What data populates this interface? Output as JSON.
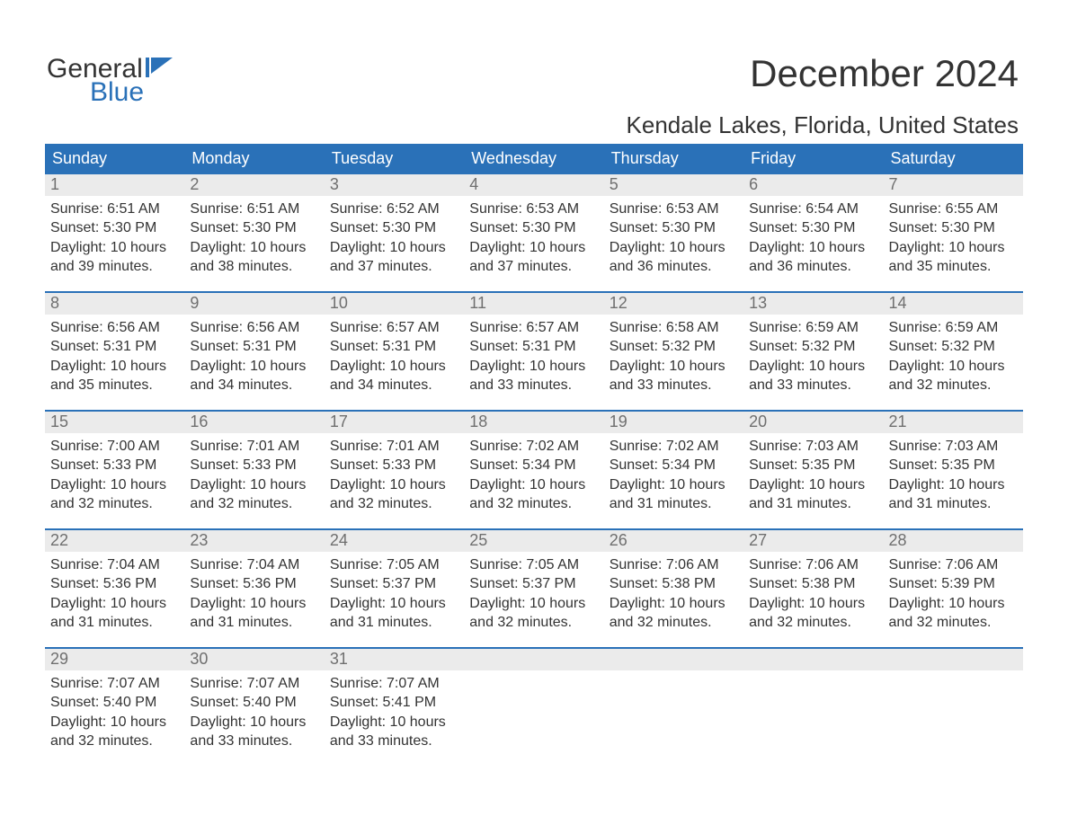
{
  "logo": {
    "word1": "General",
    "word2": "Blue",
    "flag_color": "#2a71b8"
  },
  "title": {
    "month_year": "December 2024",
    "location": "Kendale Lakes, Florida, United States"
  },
  "colors": {
    "header_bg": "#2a71b8",
    "header_text": "#ffffff",
    "daynum_bg": "#ebebeb",
    "daynum_text": "#6f6f6f",
    "body_text": "#333333",
    "week_border": "#2a71b8",
    "background": "#ffffff"
  },
  "typography": {
    "month_year_fontsize": 42,
    "location_fontsize": 26,
    "header_fontsize": 18,
    "daynum_fontsize": 18,
    "cell_fontsize": 16,
    "logo_fontsize": 30
  },
  "calendar": {
    "day_headers": [
      "Sunday",
      "Monday",
      "Tuesday",
      "Wednesday",
      "Thursday",
      "Friday",
      "Saturday"
    ],
    "weeks": [
      [
        {
          "n": "1",
          "sunrise": "Sunrise: 6:51 AM",
          "sunset": "Sunset: 5:30 PM",
          "daylight": "Daylight: 10 hours and 39 minutes."
        },
        {
          "n": "2",
          "sunrise": "Sunrise: 6:51 AM",
          "sunset": "Sunset: 5:30 PM",
          "daylight": "Daylight: 10 hours and 38 minutes."
        },
        {
          "n": "3",
          "sunrise": "Sunrise: 6:52 AM",
          "sunset": "Sunset: 5:30 PM",
          "daylight": "Daylight: 10 hours and 37 minutes."
        },
        {
          "n": "4",
          "sunrise": "Sunrise: 6:53 AM",
          "sunset": "Sunset: 5:30 PM",
          "daylight": "Daylight: 10 hours and 37 minutes."
        },
        {
          "n": "5",
          "sunrise": "Sunrise: 6:53 AM",
          "sunset": "Sunset: 5:30 PM",
          "daylight": "Daylight: 10 hours and 36 minutes."
        },
        {
          "n": "6",
          "sunrise": "Sunrise: 6:54 AM",
          "sunset": "Sunset: 5:30 PM",
          "daylight": "Daylight: 10 hours and 36 minutes."
        },
        {
          "n": "7",
          "sunrise": "Sunrise: 6:55 AM",
          "sunset": "Sunset: 5:30 PM",
          "daylight": "Daylight: 10 hours and 35 minutes."
        }
      ],
      [
        {
          "n": "8",
          "sunrise": "Sunrise: 6:56 AM",
          "sunset": "Sunset: 5:31 PM",
          "daylight": "Daylight: 10 hours and 35 minutes."
        },
        {
          "n": "9",
          "sunrise": "Sunrise: 6:56 AM",
          "sunset": "Sunset: 5:31 PM",
          "daylight": "Daylight: 10 hours and 34 minutes."
        },
        {
          "n": "10",
          "sunrise": "Sunrise: 6:57 AM",
          "sunset": "Sunset: 5:31 PM",
          "daylight": "Daylight: 10 hours and 34 minutes."
        },
        {
          "n": "11",
          "sunrise": "Sunrise: 6:57 AM",
          "sunset": "Sunset: 5:31 PM",
          "daylight": "Daylight: 10 hours and 33 minutes."
        },
        {
          "n": "12",
          "sunrise": "Sunrise: 6:58 AM",
          "sunset": "Sunset: 5:32 PM",
          "daylight": "Daylight: 10 hours and 33 minutes."
        },
        {
          "n": "13",
          "sunrise": "Sunrise: 6:59 AM",
          "sunset": "Sunset: 5:32 PM",
          "daylight": "Daylight: 10 hours and 33 minutes."
        },
        {
          "n": "14",
          "sunrise": "Sunrise: 6:59 AM",
          "sunset": "Sunset: 5:32 PM",
          "daylight": "Daylight: 10 hours and 32 minutes."
        }
      ],
      [
        {
          "n": "15",
          "sunrise": "Sunrise: 7:00 AM",
          "sunset": "Sunset: 5:33 PM",
          "daylight": "Daylight: 10 hours and 32 minutes."
        },
        {
          "n": "16",
          "sunrise": "Sunrise: 7:01 AM",
          "sunset": "Sunset: 5:33 PM",
          "daylight": "Daylight: 10 hours and 32 minutes."
        },
        {
          "n": "17",
          "sunrise": "Sunrise: 7:01 AM",
          "sunset": "Sunset: 5:33 PM",
          "daylight": "Daylight: 10 hours and 32 minutes."
        },
        {
          "n": "18",
          "sunrise": "Sunrise: 7:02 AM",
          "sunset": "Sunset: 5:34 PM",
          "daylight": "Daylight: 10 hours and 32 minutes."
        },
        {
          "n": "19",
          "sunrise": "Sunrise: 7:02 AM",
          "sunset": "Sunset: 5:34 PM",
          "daylight": "Daylight: 10 hours and 31 minutes."
        },
        {
          "n": "20",
          "sunrise": "Sunrise: 7:03 AM",
          "sunset": "Sunset: 5:35 PM",
          "daylight": "Daylight: 10 hours and 31 minutes."
        },
        {
          "n": "21",
          "sunrise": "Sunrise: 7:03 AM",
          "sunset": "Sunset: 5:35 PM",
          "daylight": "Daylight: 10 hours and 31 minutes."
        }
      ],
      [
        {
          "n": "22",
          "sunrise": "Sunrise: 7:04 AM",
          "sunset": "Sunset: 5:36 PM",
          "daylight": "Daylight: 10 hours and 31 minutes."
        },
        {
          "n": "23",
          "sunrise": "Sunrise: 7:04 AM",
          "sunset": "Sunset: 5:36 PM",
          "daylight": "Daylight: 10 hours and 31 minutes."
        },
        {
          "n": "24",
          "sunrise": "Sunrise: 7:05 AM",
          "sunset": "Sunset: 5:37 PM",
          "daylight": "Daylight: 10 hours and 31 minutes."
        },
        {
          "n": "25",
          "sunrise": "Sunrise: 7:05 AM",
          "sunset": "Sunset: 5:37 PM",
          "daylight": "Daylight: 10 hours and 32 minutes."
        },
        {
          "n": "26",
          "sunrise": "Sunrise: 7:06 AM",
          "sunset": "Sunset: 5:38 PM",
          "daylight": "Daylight: 10 hours and 32 minutes."
        },
        {
          "n": "27",
          "sunrise": "Sunrise: 7:06 AM",
          "sunset": "Sunset: 5:38 PM",
          "daylight": "Daylight: 10 hours and 32 minutes."
        },
        {
          "n": "28",
          "sunrise": "Sunrise: 7:06 AM",
          "sunset": "Sunset: 5:39 PM",
          "daylight": "Daylight: 10 hours and 32 minutes."
        }
      ],
      [
        {
          "n": "29",
          "sunrise": "Sunrise: 7:07 AM",
          "sunset": "Sunset: 5:40 PM",
          "daylight": "Daylight: 10 hours and 32 minutes."
        },
        {
          "n": "30",
          "sunrise": "Sunrise: 7:07 AM",
          "sunset": "Sunset: 5:40 PM",
          "daylight": "Daylight: 10 hours and 33 minutes."
        },
        {
          "n": "31",
          "sunrise": "Sunrise: 7:07 AM",
          "sunset": "Sunset: 5:41 PM",
          "daylight": "Daylight: 10 hours and 33 minutes."
        },
        {
          "n": "",
          "sunrise": "",
          "sunset": "",
          "daylight": ""
        },
        {
          "n": "",
          "sunrise": "",
          "sunset": "",
          "daylight": ""
        },
        {
          "n": "",
          "sunrise": "",
          "sunset": "",
          "daylight": ""
        },
        {
          "n": "",
          "sunrise": "",
          "sunset": "",
          "daylight": ""
        }
      ]
    ]
  }
}
